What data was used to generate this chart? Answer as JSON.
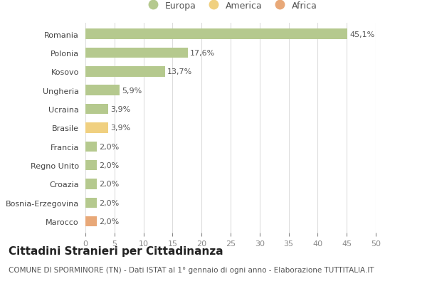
{
  "categories": [
    "Romania",
    "Polonia",
    "Kosovo",
    "Ungheria",
    "Ucraina",
    "Brasile",
    "Francia",
    "Regno Unito",
    "Croazia",
    "Bosnia-Erzegovina",
    "Marocco"
  ],
  "values": [
    45.1,
    17.6,
    13.7,
    5.9,
    3.9,
    3.9,
    2.0,
    2.0,
    2.0,
    2.0,
    2.0
  ],
  "labels": [
    "45,1%",
    "17,6%",
    "13,7%",
    "5,9%",
    "3,9%",
    "3,9%",
    "2,0%",
    "2,0%",
    "2,0%",
    "2,0%",
    "2,0%"
  ],
  "continents": [
    "Europa",
    "Europa",
    "Europa",
    "Europa",
    "Europa",
    "America",
    "Europa",
    "Europa",
    "Europa",
    "Europa",
    "Africa"
  ],
  "colors": {
    "Europa": "#b5c98e",
    "America": "#f0d080",
    "Africa": "#e8a878"
  },
  "legend_order": [
    "Europa",
    "America",
    "Africa"
  ],
  "legend_colors": [
    "#b5c98e",
    "#f0d080",
    "#e8a878"
  ],
  "legend_labels": [
    "Europa",
    "America",
    "Africa"
  ],
  "xlim": [
    0,
    50
  ],
  "xticks": [
    0,
    5,
    10,
    15,
    20,
    25,
    30,
    35,
    40,
    45,
    50
  ],
  "title": "Cittadini Stranieri per Cittadinanza",
  "subtitle": "COMUNE DI SPORMINORE (TN) - Dati ISTAT al 1° gennaio di ogni anno - Elaborazione TUTTITALIA.IT",
  "bg_color": "#ffffff",
  "grid_color": "#dddddd",
  "bar_height": 0.55,
  "title_fontsize": 11,
  "subtitle_fontsize": 7.5,
  "label_fontsize": 8,
  "tick_fontsize": 8,
  "legend_fontsize": 9
}
